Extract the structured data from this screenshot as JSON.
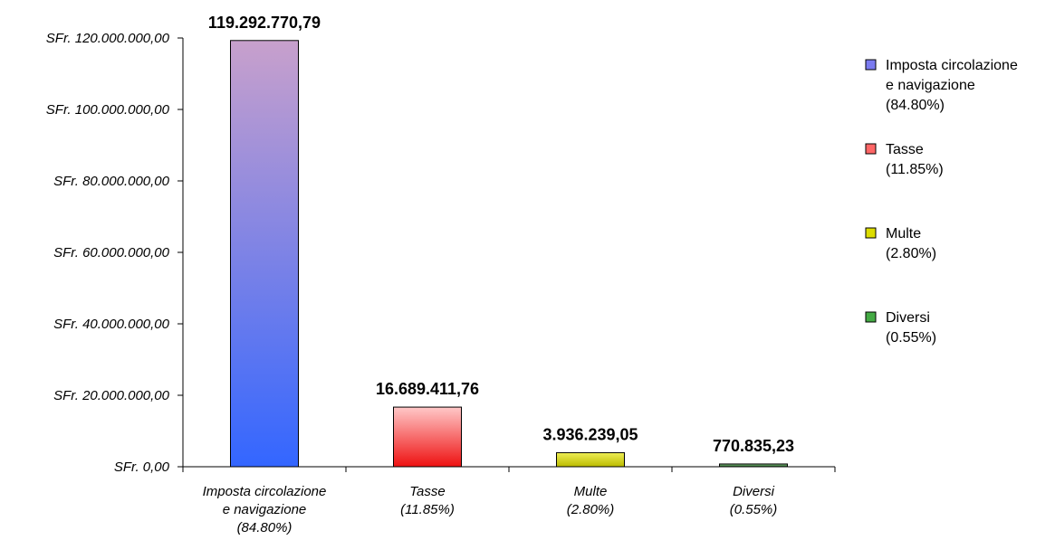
{
  "chart_data": {
    "type": "bar",
    "categories": [
      [
        "Imposta circolazione",
        "e navigazione",
        "(84.80%)"
      ],
      [
        "Tasse",
        "(11.85%)"
      ],
      [
        "Multe",
        "(2.80%)"
      ],
      [
        "Diversi",
        "(0.55%)"
      ]
    ],
    "values": [
      119292770.79,
      16689411.76,
      3936239.05,
      770835.23
    ],
    "data_labels": [
      "119.292.770,79",
      "16.689.411,76",
      "3.936.239,05",
      "770.835,23"
    ],
    "ylim": [
      0,
      120000000
    ],
    "yticks": [
      0,
      20000000,
      40000000,
      60000000,
      80000000,
      100000000,
      120000000
    ],
    "ytick_labels": [
      "SFr. 0,00",
      "SFr. 20.000.000,00",
      "SFr. 40.000.000,00",
      "SFr. 60.000.000,00",
      "SFr. 80.000.000,00",
      "SFr. 100.000.000,00",
      "SFr. 120.000.000,00"
    ],
    "grid": false,
    "legend_position": "right",
    "legend": [
      [
        "Imposta circolazione",
        "e navigazione",
        "(84.80%)"
      ],
      [
        "Tasse",
        "(11.85%)"
      ],
      [
        "Multe",
        "(2.80%)"
      ],
      [
        "Diversi",
        "(0.55%)"
      ]
    ],
    "colors": [
      {
        "top": "#c8a0cc",
        "bottom": "#3366ff",
        "legend": "#7b7bf0"
      },
      {
        "top": "#ffc8c8",
        "bottom": "#ee1111",
        "legend": "#ff6666"
      },
      {
        "top": "#eeee55",
        "bottom": "#bbbb00",
        "legend": "#dddd00"
      },
      {
        "top": "#88bb88",
        "bottom": "#226622",
        "legend": "#44aa44"
      }
    ]
  }
}
